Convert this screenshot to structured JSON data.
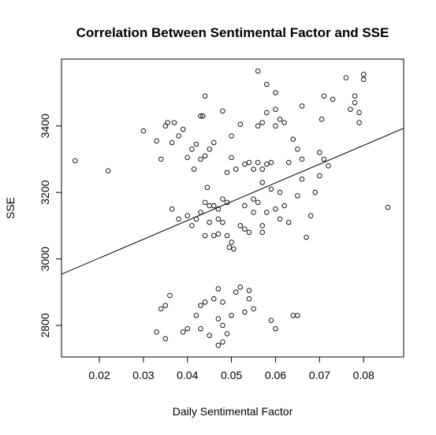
{
  "chart_data": {
    "type": "scatter",
    "title": "Correlation Between Sentimental Factor and SSE",
    "x_label": "Daily Sentimental Factor",
    "y_label": "SSE",
    "xlim": [
      0.0114,
      0.0891
    ],
    "ylim": [
      2705,
      3601
    ],
    "xticks": [
      0.02,
      0.03,
      0.04,
      0.05,
      0.06,
      0.07,
      0.08
    ],
    "yticks": [
      2800,
      3000,
      3200,
      3400
    ],
    "color": "#000000",
    "x": [
      0.0145,
      0.022,
      0.03,
      0.033,
      0.034,
      0.035,
      0.0355,
      0.037,
      0.038,
      0.039,
      0.0365,
      0.04,
      0.041,
      0.042,
      0.0415,
      0.043,
      0.043,
      0.0435,
      0.044,
      0.045,
      0.046,
      0.044,
      0.048,
      0.05,
      0.051,
      0.049,
      0.05,
      0.052,
      0.053,
      0.054,
      0.055,
      0.056,
      0.057,
      0.057,
      0.058,
      0.059,
      0.056,
      0.057,
      0.058,
      0.06,
      0.061,
      0.06,
      0.062,
      0.063,
      0.065,
      0.066,
      0.058,
      0.056,
      0.06,
      0.064,
      0.066,
      0.07,
      0.071,
      0.072,
      0.0705,
      0.071,
      0.073,
      0.076,
      0.077,
      0.078,
      0.078,
      0.079,
      0.08,
      0.08,
      0.079,
      0.0855,
      0.0365,
      0.038,
      0.04,
      0.041,
      0.042,
      0.043,
      0.044,
      0.0445,
      0.045,
      0.046,
      0.047,
      0.048,
      0.049,
      0.048,
      0.047,
      0.046,
      0.045,
      0.044,
      0.047,
      0.049,
      0.05,
      0.0505,
      0.0495,
      0.052,
      0.053,
      0.053,
      0.054,
      0.055,
      0.055,
      0.056,
      0.057,
      0.058,
      0.057,
      0.059,
      0.06,
      0.061,
      0.061,
      0.062,
      0.063,
      0.065,
      0.066,
      0.067,
      0.068,
      0.069,
      0.07,
      0.033,
      0.035,
      0.034,
      0.035,
      0.036,
      0.039,
      0.04,
      0.042,
      0.043,
      0.043,
      0.044,
      0.045,
      0.046,
      0.047,
      0.047,
      0.048,
      0.047,
      0.048,
      0.049,
      0.048,
      0.05,
      0.051,
      0.052,
      0.054,
      0.054,
      0.055,
      0.053,
      0.059,
      0.06,
      0.064,
      0.065
    ],
    "values": [
      3295,
      3265,
      3385,
      3355,
      3300,
      3400,
      3410,
      3410,
      3370,
      3390,
      3350,
      3305,
      3330,
      3345,
      3270,
      3300,
      3430,
      3430,
      3490,
      3330,
      3350,
      3310,
      3445,
      3305,
      3270,
      3260,
      3370,
      3405,
      3285,
      3290,
      3270,
      3290,
      3230,
      3270,
      3285,
      3290,
      3400,
      3410,
      3440,
      3450,
      3420,
      3400,
      3410,
      3290,
      3330,
      3460,
      3525,
      3565,
      3500,
      3360,
      3300,
      3320,
      3300,
      3280,
      3420,
      3490,
      3480,
      3545,
      3450,
      3470,
      3490,
      3410,
      3540,
      3555,
      3440,
      3155,
      3150,
      3120,
      3130,
      3100,
      3120,
      3140,
      3170,
      3215,
      3160,
      3160,
      3150,
      3180,
      3170,
      3110,
      3120,
      3070,
      3110,
      3070,
      3075,
      3070,
      3050,
      3030,
      3035,
      3100,
      3090,
      3160,
      3080,
      3140,
      3180,
      3170,
      3100,
      3140,
      3080,
      3210,
      3150,
      3200,
      3120,
      3160,
      3110,
      3190,
      3240,
      3065,
      3130,
      3200,
      3250,
      2780,
      2760,
      2850,
      2860,
      2890,
      2780,
      2790,
      2830,
      2860,
      2790,
      2870,
      2770,
      2880,
      2910,
      2820,
      2870,
      2740,
      2750,
      2775,
      2800,
      2830,
      2900,
      2915,
      2905,
      2880,
      2850,
      2840,
      2815,
      2790,
      2830,
      2830
    ],
    "fit_line": {
      "x": [
        0.0114,
        0.0891
      ],
      "y": [
        2954,
        3393
      ]
    }
  }
}
